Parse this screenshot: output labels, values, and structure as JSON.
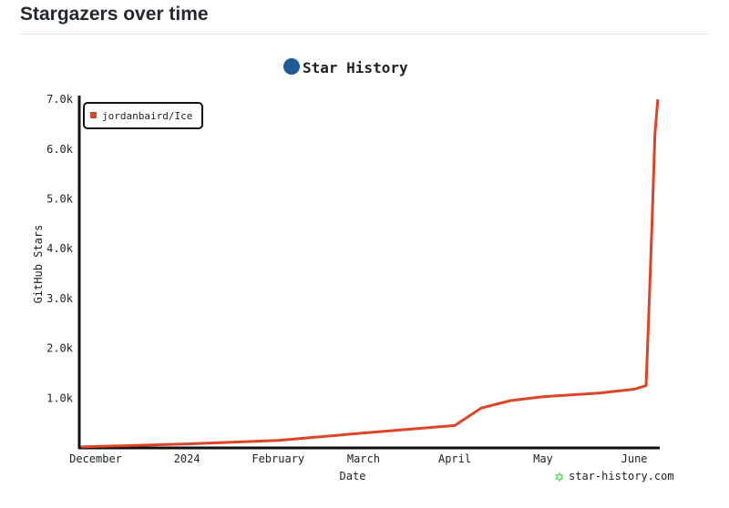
{
  "page": {
    "heading": "Stargazers over time"
  },
  "chart_data": {
    "type": "line",
    "title": "Star History",
    "xlabel": "Date",
    "ylabel": "GitHub Stars",
    "watermark": "star-history.com",
    "legend": {
      "placement": "top-left",
      "entries": [
        "jordanbaird/Ice"
      ]
    },
    "ylim": [
      0,
      7000
    ],
    "yticks": [
      1000,
      2000,
      3000,
      4000,
      5000,
      6000,
      7000
    ],
    "ytick_labels": [
      "1.0k",
      "2.0k",
      "3.0k",
      "4.0k",
      "5.0k",
      "6.0k",
      "7.0k"
    ],
    "xlim": [
      "2023-11-26",
      "2024-06-12"
    ],
    "xticks": [
      "2023-12-01",
      "2024-01-01",
      "2024-02-01",
      "2024-03-01",
      "2024-04-01",
      "2024-05-01",
      "2024-06-01"
    ],
    "xtick_labels": [
      "December",
      "2024",
      "February",
      "March",
      "April",
      "May",
      "June"
    ],
    "grid": false,
    "series": [
      {
        "name": "jordanbaird/Ice",
        "color": "#dd4528",
        "x": [
          "2023-11-26",
          "2024-01-01",
          "2024-02-01",
          "2024-03-01",
          "2024-04-01",
          "2024-04-10",
          "2024-04-20",
          "2024-05-01",
          "2024-05-20",
          "2024-06-01",
          "2024-06-05",
          "2024-06-06",
          "2024-06-07",
          "2024-06-08",
          "2024-06-09"
        ],
        "y": [
          20,
          80,
          150,
          300,
          450,
          800,
          950,
          1030,
          1100,
          1180,
          1250,
          2800,
          4500,
          6300,
          7000
        ]
      }
    ]
  }
}
